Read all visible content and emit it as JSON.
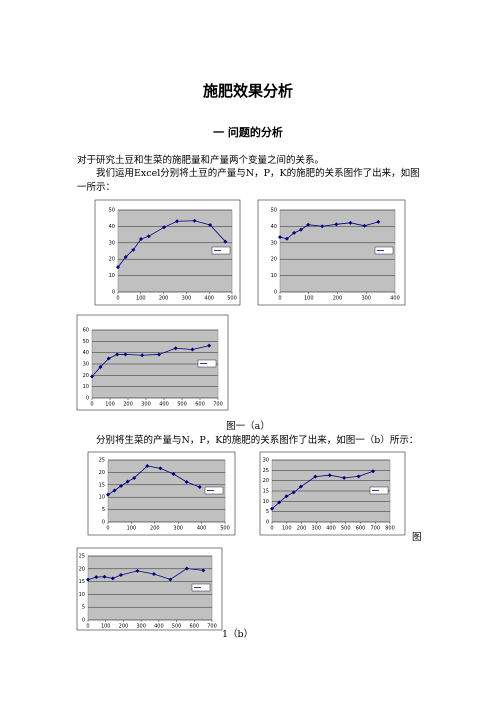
{
  "title": "施肥效果分析",
  "section": "一  问题的分析",
  "paragraphs": [
    "对于研究土豆和生菜的施肥量和产量两个变量之间的关系。",
    "我们运用Excel分别将土豆的产量与N，P，K的施肥的关系图作了出来，如图一所示：",
    "分别将生菜的产量与N，P，K的施肥的关系图作了出来，如图一（b）所示："
  ],
  "captions": [
    "图一（a）",
    "图",
    "1（b）"
  ],
  "charts": [
    {
      "type": "line",
      "color": "#000080",
      "x": [
        0,
        34,
        67,
        101,
        135,
        202,
        259,
        336,
        404,
        471
      ],
      "values": [
        15.18,
        21.36,
        25.72,
        32.29,
        34.03,
        39.45,
        43.15,
        43.46,
        40.83,
        30.75
      ],
      "xlim": [
        0,
        500
      ],
      "xticks": [
        0,
        100,
        200,
        300,
        400,
        500
      ],
      "ylim": [
        0,
        50
      ],
      "yticks": [
        0,
        10,
        20,
        30,
        40,
        50
      ]
    },
    {
      "type": "line",
      "color": "#000080",
      "x": [
        0,
        24,
        49,
        73,
        98,
        147,
        196,
        245,
        294,
        342
      ],
      "values": [
        33.46,
        32.47,
        36.06,
        37.96,
        41.04,
        40.09,
        41.26,
        42.17,
        40.36,
        42.73
      ],
      "xlim": [
        0,
        400
      ],
      "xticks": [
        0,
        100,
        200,
        300,
        400
      ],
      "ylim": [
        0,
        50
      ],
      "yticks": [
        0,
        10,
        20,
        30,
        40,
        50
      ]
    },
    {
      "type": "line",
      "color": "#000080",
      "x": [
        0,
        47,
        93,
        140,
        186,
        279,
        372,
        465,
        558,
        651
      ],
      "values": [
        18.98,
        27.35,
        34.86,
        38.52,
        38.44,
        37.73,
        38.43,
        43.87,
        42.77,
        46.22
      ],
      "xlim": [
        0,
        700
      ],
      "xticks": [
        0,
        100,
        200,
        300,
        400,
        500,
        600,
        700
      ],
      "ylim": [
        0,
        60
      ],
      "yticks": [
        0,
        10,
        20,
        30,
        40,
        50,
        60
      ]
    },
    {
      "type": "line",
      "color": "#000080",
      "x": [
        0,
        28,
        56,
        84,
        112,
        168,
        224,
        280,
        336,
        392
      ],
      "values": [
        11.02,
        12.7,
        14.56,
        16.27,
        17.75,
        22.59,
        21.63,
        19.34,
        16.12,
        14.11
      ],
      "xlim": [
        0,
        500
      ],
      "xticks": [
        0,
        100,
        200,
        300,
        400,
        500
      ],
      "ylim": [
        0,
        25
      ],
      "yticks": [
        0,
        5,
        10,
        15,
        20,
        25
      ]
    },
    {
      "type": "line",
      "color": "#000080",
      "x": [
        0,
        49,
        98,
        147,
        196,
        294,
        391,
        489,
        587,
        685
      ],
      "values": [
        6.39,
        9.48,
        12.46,
        14.33,
        17.1,
        21.94,
        22.64,
        21.34,
        22.07,
        24.53
      ],
      "xlim": [
        0,
        800
      ],
      "xticks": [
        0,
        100,
        200,
        300,
        400,
        500,
        600,
        700,
        800
      ],
      "ylim": [
        0,
        30
      ],
      "yticks": [
        0,
        5,
        10,
        15,
        20,
        25,
        30
      ]
    },
    {
      "type": "line",
      "color": "#000080",
      "x": [
        0,
        47,
        93,
        140,
        186,
        279,
        372,
        465,
        558,
        651
      ],
      "values": [
        15.75,
        16.76,
        16.89,
        16.24,
        17.56,
        19.2,
        17.97,
        15.84,
        20.11,
        19.4
      ],
      "xlim": [
        0,
        700
      ],
      "xticks": [
        0,
        100,
        200,
        300,
        400,
        500,
        600,
        700
      ],
      "ylim": [
        0,
        25
      ],
      "yticks": [
        0,
        5,
        10,
        15,
        20,
        25
      ]
    }
  ]
}
